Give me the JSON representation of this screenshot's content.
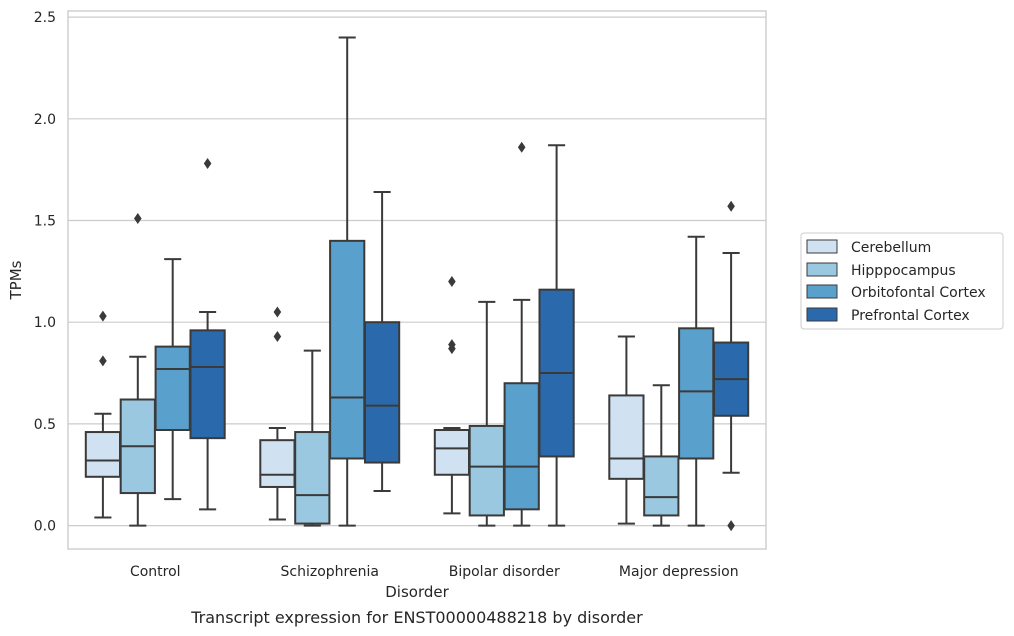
{
  "chart_data": {
    "type": "box",
    "caption": "Transcript expression for ENST00000488218 by disorder",
    "xlabel": "Disorder",
    "ylabel": "TPMs",
    "ylim": [
      -0.115,
      2.53
    ],
    "yticks": [
      0.0,
      0.5,
      1.0,
      1.5,
      2.0,
      2.5
    ],
    "ytick_labels": [
      "0.0",
      "0.5",
      "1.0",
      "1.5",
      "2.0",
      "2.5"
    ],
    "grid": true,
    "legend_position": "right",
    "categories": [
      "Control",
      "Schizophrenia",
      "Bipolar disorder",
      "Major depression"
    ],
    "series": [
      {
        "name": "Cerebellum",
        "color": "#d0e1f2",
        "boxes": [
          {
            "q1": 0.24,
            "median": 0.32,
            "q3": 0.46,
            "whisker_low": 0.04,
            "whisker_high": 0.55,
            "outliers": [
              0.81,
              1.03
            ]
          },
          {
            "q1": 0.19,
            "median": 0.25,
            "q3": 0.42,
            "whisker_low": 0.03,
            "whisker_high": 0.48,
            "outliers": [
              0.93,
              1.05
            ]
          },
          {
            "q1": 0.25,
            "median": 0.38,
            "q3": 0.47,
            "whisker_low": 0.06,
            "whisker_high": 0.48,
            "outliers": [
              0.87,
              0.89,
              1.2
            ]
          },
          {
            "q1": 0.23,
            "median": 0.33,
            "q3": 0.64,
            "whisker_low": 0.01,
            "whisker_high": 0.93,
            "outliers": []
          }
        ]
      },
      {
        "name": "Hipppocampus",
        "color": "#9ac8e0",
        "boxes": [
          {
            "q1": 0.16,
            "median": 0.39,
            "q3": 0.62,
            "whisker_low": 0.0,
            "whisker_high": 0.83,
            "outliers": [
              1.51
            ]
          },
          {
            "q1": 0.01,
            "median": 0.15,
            "q3": 0.46,
            "whisker_low": 0.0,
            "whisker_high": 0.86,
            "outliers": []
          },
          {
            "q1": 0.05,
            "median": 0.29,
            "q3": 0.49,
            "whisker_low": 0.0,
            "whisker_high": 1.1,
            "outliers": []
          },
          {
            "q1": 0.05,
            "median": 0.14,
            "q3": 0.34,
            "whisker_low": 0.0,
            "whisker_high": 0.69,
            "outliers": []
          }
        ]
      },
      {
        "name": "Orbitofontal Cortex",
        "color": "#5aa0cd",
        "boxes": [
          {
            "q1": 0.47,
            "median": 0.77,
            "q3": 0.88,
            "whisker_low": 0.13,
            "whisker_high": 1.31,
            "outliers": []
          },
          {
            "q1": 0.33,
            "median": 0.63,
            "q3": 1.4,
            "whisker_low": 0.0,
            "whisker_high": 2.4,
            "outliers": []
          },
          {
            "q1": 0.08,
            "median": 0.29,
            "q3": 0.7,
            "whisker_low": 0.0,
            "whisker_high": 1.11,
            "outliers": [
              1.86
            ]
          },
          {
            "q1": 0.33,
            "median": 0.66,
            "q3": 0.97,
            "whisker_low": 0.0,
            "whisker_high": 1.42,
            "outliers": []
          }
        ]
      },
      {
        "name": "Prefrontal Cortex",
        "color": "#2a6aac",
        "boxes": [
          {
            "q1": 0.43,
            "median": 0.78,
            "q3": 0.96,
            "whisker_low": 0.08,
            "whisker_high": 1.05,
            "outliers": [
              1.78
            ]
          },
          {
            "q1": 0.31,
            "median": 0.59,
            "q3": 1.0,
            "whisker_low": 0.17,
            "whisker_high": 1.64,
            "outliers": []
          },
          {
            "q1": 0.34,
            "median": 0.75,
            "q3": 1.16,
            "whisker_low": 0.0,
            "whisker_high": 1.87,
            "outliers": []
          },
          {
            "q1": 0.54,
            "median": 0.72,
            "q3": 0.9,
            "whisker_low": 0.26,
            "whisker_high": 1.34,
            "outliers": [
              0.0,
              1.57
            ]
          }
        ]
      }
    ]
  }
}
